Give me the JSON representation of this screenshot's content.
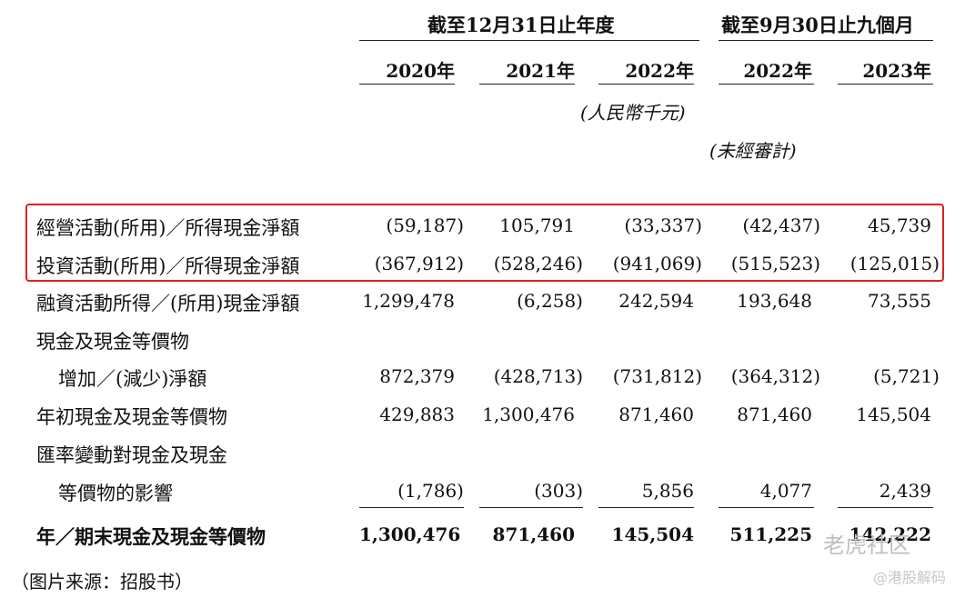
{
  "header": {
    "group1": "截至12月31日止年度",
    "group2": "截至9月30日止九個月",
    "years": [
      "2020年",
      "2021年",
      "2022年",
      "2022年",
      "2023年"
    ],
    "currency_note": "(人民幣千元)",
    "unaudited_note": "(未經審計)"
  },
  "rows": [
    {
      "label": "經營活動(所用)／所得現金淨額",
      "values": [
        "(59,187)",
        "105,791",
        "(33,337)",
        "(42,437)",
        "45,739"
      ]
    },
    {
      "label": "投資活動(所用)／所得現金淨額",
      "values": [
        "(367,912)",
        "(528,246)",
        "(941,069)",
        "(515,523)",
        "(125,015)"
      ]
    },
    {
      "label": "融資活動所得／(所用)現金淨額",
      "values": [
        "1,299,478",
        "(6,258)",
        "242,594",
        "193,648",
        "73,555"
      ]
    },
    {
      "label": "現金及現金等價物",
      "values": []
    },
    {
      "label": "增加／(減少)淨額",
      "values": [
        "872,379",
        "(428,713)",
        "(731,812)",
        "(364,312)",
        "(5,721)"
      ]
    },
    {
      "label": "年初現金及現金等價物",
      "values": [
        "429,883",
        "1,300,476",
        "871,460",
        "871,460",
        "145,504"
      ]
    },
    {
      "label": "匯率變動對現金及現金",
      "values": []
    },
    {
      "label": "等價物的影響",
      "values": [
        "(1,786)",
        "(303)",
        "5,856",
        "4,077",
        "2,439"
      ]
    },
    {
      "label": "年／期末現金及現金等價物",
      "values": [
        "1,300,476",
        "871,460",
        "145,504",
        "511,225",
        "142,222"
      ]
    }
  ],
  "caption": "（图片来源：招股书）",
  "watermark": {
    "main": "老虎社区",
    "sub": "@港股解码"
  },
  "colors": {
    "highlight_box": "#e02020"
  }
}
